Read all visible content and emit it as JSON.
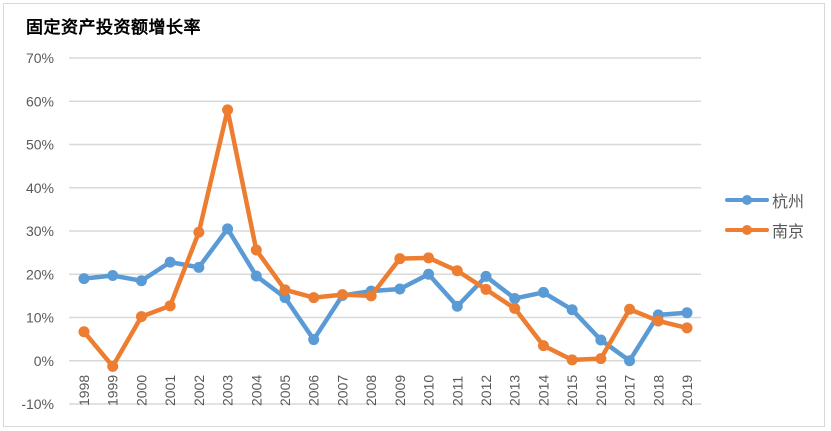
{
  "chart_data": {
    "type": "line",
    "title": "固定资产投资额增长率",
    "xlabel": "",
    "ylabel": "",
    "x": [
      "1998",
      "1999",
      "2000",
      "2001",
      "2002",
      "2003",
      "2004",
      "2005",
      "2006",
      "2007",
      "2008",
      "2009",
      "2010",
      "2011",
      "2012",
      "2013",
      "2014",
      "2015",
      "2016",
      "2017",
      "2018",
      "2019"
    ],
    "series": [
      {
        "name": "杭州",
        "color": "#5b9bd5",
        "values": [
          19.0,
          19.7,
          18.5,
          22.8,
          21.6,
          30.5,
          19.6,
          14.6,
          4.9,
          15.1,
          16.1,
          16.6,
          20.0,
          12.6,
          19.5,
          14.4,
          15.8,
          11.8,
          4.8,
          0.0,
          10.6,
          11.1
        ]
      },
      {
        "name": "南京",
        "color": "#ed7d31",
        "values": [
          6.7,
          -1.3,
          10.2,
          12.7,
          29.7,
          58.0,
          25.6,
          16.4,
          14.6,
          15.3,
          15.0,
          23.6,
          23.8,
          20.8,
          16.5,
          12.1,
          3.5,
          0.2,
          0.5,
          11.9,
          9.2,
          7.6
        ]
      }
    ],
    "yticks": [
      "70%",
      "60%",
      "50%",
      "40%",
      "30%",
      "20%",
      "10%",
      "0%",
      "-10%"
    ],
    "ylim": [
      -10,
      70
    ],
    "unit": "%",
    "grid": true,
    "legend_position": "right",
    "gridline_color": "#d9d9d9"
  }
}
